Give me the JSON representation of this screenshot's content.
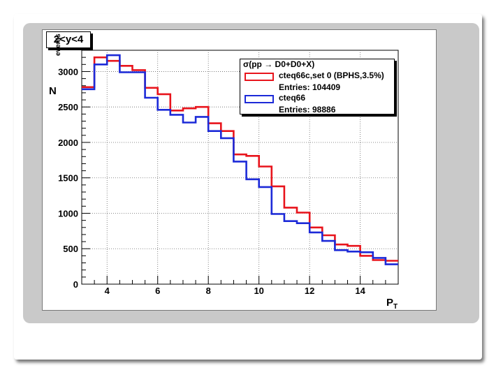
{
  "chart_data": {
    "type": "line",
    "step": true,
    "title": "2<y<4",
    "ylabel_main": "N",
    "ylabel_sub": "events",
    "xlabel_main": "P",
    "xlabel_sub": "T",
    "legend_header": "σ(pp → D0+D0+X)",
    "xlim": [
      3.0,
      15.5
    ],
    "ylim": [
      0,
      3300
    ],
    "x_ticks": [
      4,
      6,
      8,
      10,
      12,
      14
    ],
    "y_ticks": [
      0,
      500,
      1000,
      1500,
      2000,
      2500,
      3000
    ],
    "grid": true,
    "legend_position": "top-right",
    "bin_edges": [
      3.0,
      3.5,
      4.0,
      4.5,
      5.0,
      5.5,
      6.0,
      6.5,
      7.0,
      7.5,
      8.0,
      8.5,
      9.0,
      9.5,
      10.0,
      10.5,
      11.0,
      11.5,
      12.0,
      12.5,
      13.0,
      13.5,
      14.0,
      14.5,
      15.0,
      15.5
    ],
    "series": [
      {
        "name": "cteq66c,set 0 (BPHS,3.5%)",
        "entries": "Entries: 104409",
        "color": "#e8141c",
        "values": [
          2780,
          3200,
          3150,
          3080,
          3020,
          2770,
          2680,
          2450,
          2480,
          2500,
          2270,
          2160,
          1830,
          1810,
          1660,
          1380,
          1080,
          1010,
          800,
          690,
          560,
          540,
          400,
          340,
          330
        ]
      },
      {
        "name": "cteq66",
        "entries": "Entries: 98886",
        "color": "#1c2ad8",
        "values": [
          2750,
          3100,
          3230,
          2990,
          2990,
          2630,
          2460,
          2390,
          2280,
          2360,
          2160,
          2060,
          1730,
          1480,
          1370,
          990,
          890,
          860,
          730,
          610,
          480,
          460,
          450,
          370,
          280
        ]
      }
    ]
  }
}
